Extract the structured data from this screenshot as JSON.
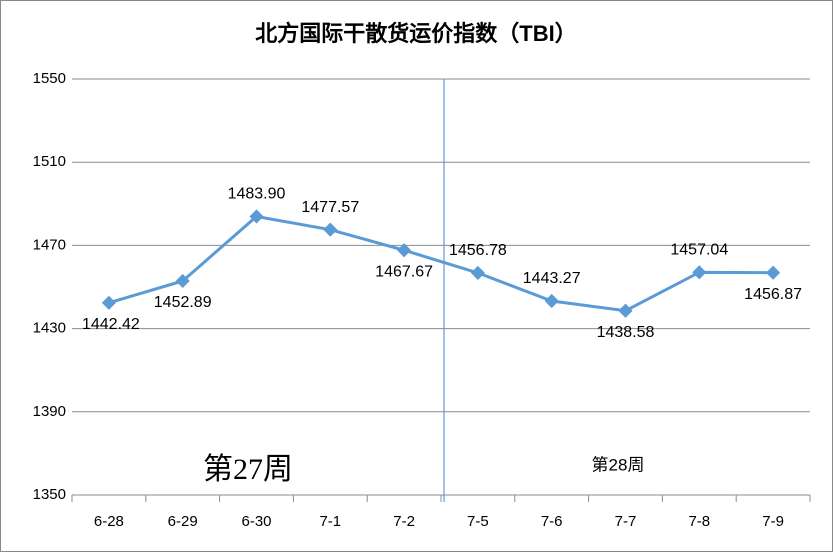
{
  "chart_data": {
    "type": "line",
    "title": "北方国际干散货运价指数（TBI）",
    "categories": [
      "6-28",
      "6-29",
      "6-30",
      "7-1",
      "7-2",
      "7-5",
      "7-6",
      "7-7",
      "7-8",
      "7-9"
    ],
    "series": [
      {
        "name": "TBI",
        "color": "#5b9bd5",
        "values": [
          1442.42,
          1452.89,
          1483.9,
          1477.57,
          1467.67,
          1456.78,
          1443.27,
          1438.58,
          1457.04,
          1456.87
        ],
        "value_labels": [
          "1442.42",
          "1452.89",
          "1483.90",
          "1477.57",
          "1467.67",
          "1456.78",
          "1443.27",
          "1438.58",
          "1457.04",
          "1456.87"
        ]
      }
    ],
    "ylim": [
      1350,
      1550
    ],
    "yticks": [
      1350,
      1390,
      1430,
      1470,
      1510,
      1550
    ],
    "grid": true,
    "annotations": [
      "第27周",
      "第28周"
    ]
  }
}
